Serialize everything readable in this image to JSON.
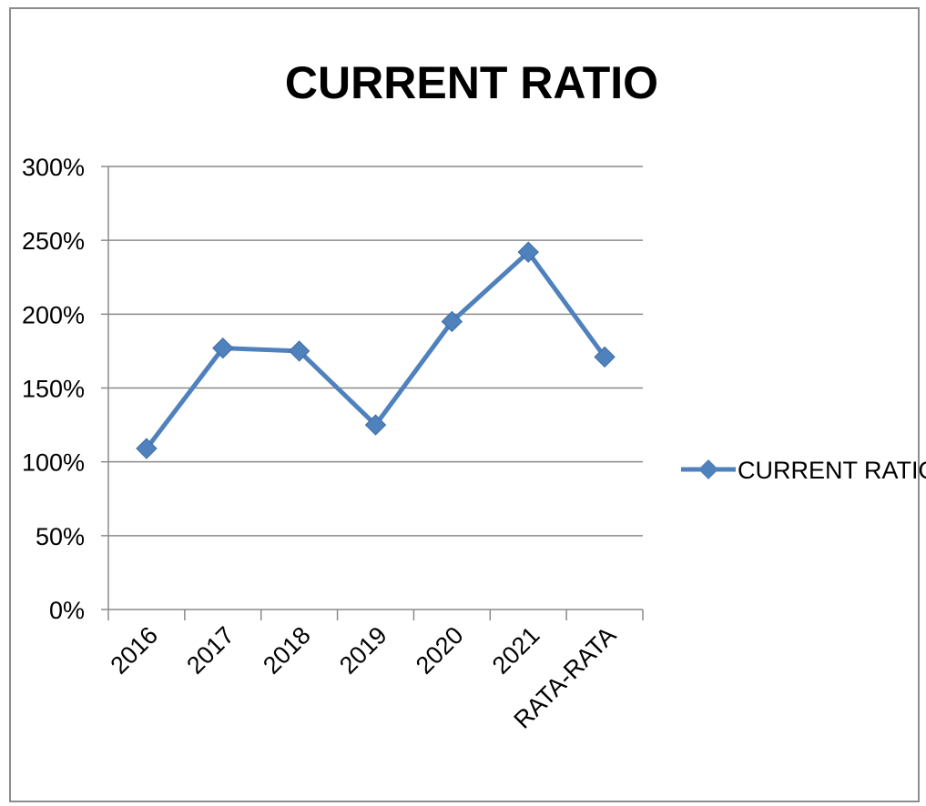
{
  "chart_data": {
    "type": "line",
    "title": "CURRENT RATIO",
    "categories": [
      "2016",
      "2017",
      "2018",
      "2019",
      "2020",
      "2021",
      "RATA-RATA"
    ],
    "series": [
      {
        "name": "CURRENT RATIO",
        "color": "#4F81BD",
        "values": [
          109,
          177,
          175,
          125,
          195,
          242,
          171
        ]
      }
    ],
    "y_unit": "%",
    "y_ticks": [
      0,
      50,
      100,
      150,
      200,
      250,
      300
    ],
    "ylim": [
      0,
      300
    ],
    "grid": "horizontal",
    "legend_position": "right",
    "marker": "diamond"
  }
}
